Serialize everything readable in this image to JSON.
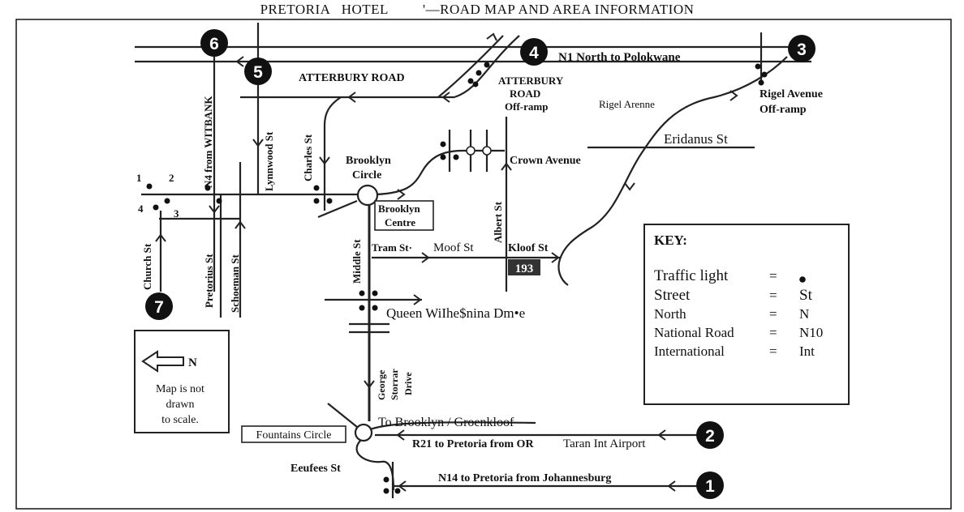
{
  "title": "PRETORIA   HOTEL         '—ROAD MAP AND AREA INFORMATION",
  "markers": [
    "1",
    "2",
    "3",
    "4",
    "5",
    "6",
    "7"
  ],
  "roads": {
    "n1_north": "N1 North to Polokwane",
    "atterbury": "ATTERBURY ROAD",
    "atterbury_offramp": [
      "ATTERBURY",
      "ROAD",
      "Off-ramp"
    ],
    "rigel_offramp": [
      "Rigel Avenue",
      "Off-ramp"
    ],
    "rigel_avenue": "Rigel Arenne",
    "eridanus": "Eridanus St",
    "n4_witbank": "N4 from WITBANK",
    "lynnwood": "Lynnwood St",
    "charles": "Charles St",
    "brooklyn_circle": [
      "Brooklyn",
      "Circle"
    ],
    "brooklyn_centre": [
      "Brooklyn",
      "Centre"
    ],
    "crown_avenue": "Crown Avenue",
    "albert": "Albert St",
    "tram": "Tram St·",
    "moof": "Moof St",
    "kloof": "Kloof St",
    "kloof_number": "193",
    "church": "Church St",
    "pretorius": "Pretorius St",
    "schoeman": "Schoeman St",
    "middle": "Middle St",
    "queen": "Queen WiIhe$nina Dm•e",
    "george_storrar": [
      "George",
      "Storrar",
      "Drive"
    ],
    "to_brooklyn": "To Brooklyn / Groenkloof",
    "fountains_circle": "Fountains Circle",
    "r21": "R21 to Pretoria from OR",
    "r21_end": "Taran Int Airport",
    "eeufees": "Eeufees St",
    "n14": "N14 to Pretoria from Johannesburg",
    "corner_numbers": [
      "1",
      "2",
      "3",
      "4"
    ]
  },
  "north_box": {
    "north_letter": "N",
    "lines": [
      "Map is not",
      "drawn",
      "to scale."
    ]
  },
  "key": {
    "heading": "KEY:",
    "rows": [
      {
        "label": "Traffic light",
        "eq": "=",
        "value": "●"
      },
      {
        "label": "Street",
        "eq": "=",
        "value": "St"
      },
      {
        "label": "North",
        "eq": "=",
        "value": "N"
      },
      {
        "label": "National Road",
        "eq": "=",
        "value": "N10"
      },
      {
        "label": "International",
        "eq": "=",
        "value": "Int"
      }
    ]
  }
}
